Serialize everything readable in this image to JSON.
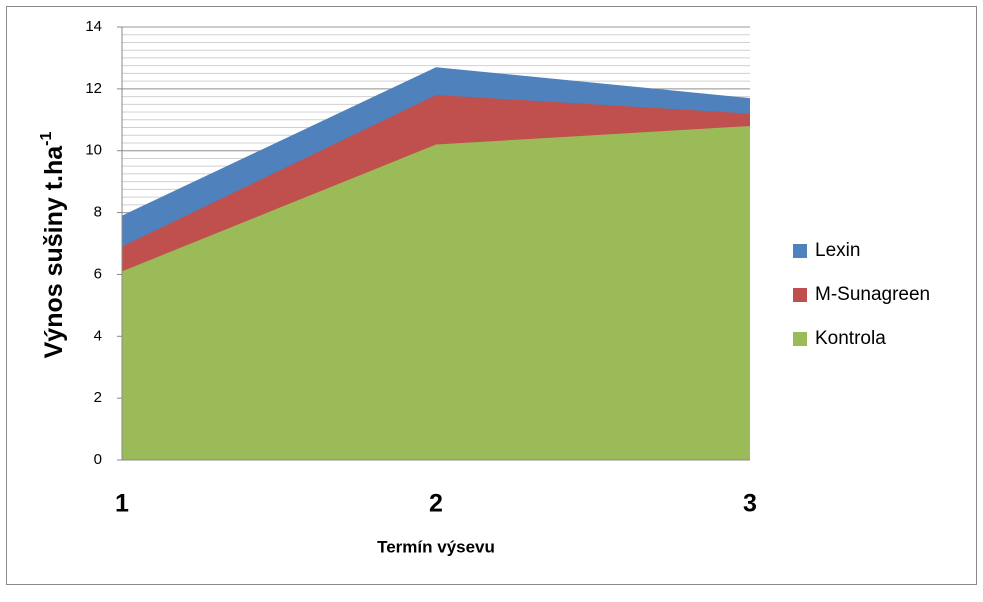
{
  "chart_data": {
    "type": "area",
    "stacked": false,
    "x_label": "Termín výsevu",
    "y_label": "Výnos sušiny t.ha",
    "y_label_superscript": "-1",
    "categories": [
      "1",
      "2",
      "3"
    ],
    "series": [
      {
        "name": "Lexin",
        "color": "#4f81bd",
        "values": [
          7.9,
          12.7,
          11.7
        ]
      },
      {
        "name": "M-Sunagreen",
        "color": "#c0504d",
        "values": [
          6.9,
          11.8,
          11.2
        ]
      },
      {
        "name": "Kontrola",
        "color": "#9bbb59",
        "values": [
          6.1,
          10.2,
          10.8
        ]
      }
    ],
    "ylim": [
      0,
      14
    ],
    "yticks": [
      0,
      2,
      4,
      6,
      8,
      10,
      12,
      14
    ],
    "grid": true,
    "minor_grid_step": 0.25,
    "legend": "right"
  }
}
